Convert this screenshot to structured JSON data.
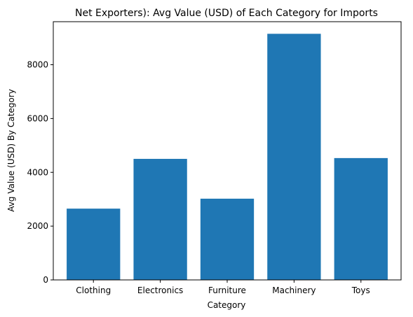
{
  "chart_data": {
    "type": "bar",
    "title": "Net Exporters): Avg Value (USD) of Each Category for Imports",
    "xlabel": "Category",
    "ylabel": "Avg Value (USD) By Category",
    "categories": [
      "Clothing",
      "Electronics",
      "Furniture",
      "Machinery",
      "Toys"
    ],
    "values": [
      2650,
      4500,
      3020,
      9150,
      4530
    ],
    "ylim": [
      0,
      9600
    ],
    "yticks": [
      "0",
      "2000",
      "4000",
      "6000",
      "8000"
    ],
    "bar_color": "#1f77b4",
    "grid": false,
    "legend": "none"
  }
}
